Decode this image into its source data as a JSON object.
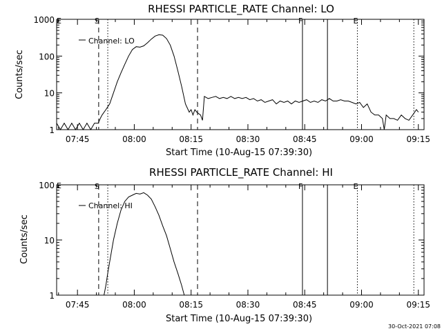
{
  "footer_text": "30-Oct-2021 07:08",
  "chart_data": [
    {
      "type": "line",
      "title": "RHESSI PARTICLE_RATE Channel: LO",
      "xlabel": "Start Time (10-Aug-15 07:39:30)",
      "ylabel": "Counts/sec",
      "x_unit": "minutes after 07:39:30",
      "xlim": [
        0,
        97
      ],
      "ylim": [
        1,
        1000
      ],
      "yscale": "log",
      "xticks": [
        {
          "x": 5.5,
          "label": "07:45"
        },
        {
          "x": 20.5,
          "label": "08:00"
        },
        {
          "x": 35.5,
          "label": "08:15"
        },
        {
          "x": 50.5,
          "label": "08:30"
        },
        {
          "x": 65.5,
          "label": "08:45"
        },
        {
          "x": 80.5,
          "label": "09:00"
        },
        {
          "x": 95.5,
          "label": "09:15"
        }
      ],
      "yticks": [
        {
          "y": 1,
          "label": "1"
        },
        {
          "y": 10,
          "label": "10"
        },
        {
          "y": 100,
          "label": "100"
        },
        {
          "y": 1000,
          "label": "1000"
        }
      ],
      "legend": {
        "label": "Channel: LO",
        "placement": "top-left"
      },
      "markers": [
        {
          "x": 11.1,
          "style": "dashed",
          "label": "S"
        },
        {
          "x": 13.5,
          "style": "dotted",
          "label": ""
        },
        {
          "x": 37.2,
          "style": "dashed",
          "label": ""
        },
        {
          "x": 64.9,
          "style": "solid",
          "label": "F"
        },
        {
          "x": 71.5,
          "style": "solid",
          "label": ""
        },
        {
          "x": 79.4,
          "style": "dotted",
          "label": "E"
        },
        {
          "x": 94.3,
          "style": "dotted",
          "label": ""
        }
      ],
      "edge_label": "E",
      "series": [
        {
          "name": "Channel: LO",
          "points": [
            [
              0,
              1.5
            ],
            [
              1,
              1
            ],
            [
              2,
              1.5
            ],
            [
              3,
              1
            ],
            [
              4,
              1.5
            ],
            [
              5,
              1
            ],
            [
              6,
              1.5
            ],
            [
              7,
              1
            ],
            [
              8,
              1.5
            ],
            [
              9,
              1
            ],
            [
              10,
              1.5
            ],
            [
              11,
              1.5
            ],
            [
              11.5,
              2
            ],
            [
              12,
              2.5
            ],
            [
              13,
              3.5
            ],
            [
              14,
              5
            ],
            [
              15,
              10
            ],
            [
              16,
              20
            ],
            [
              17,
              35
            ],
            [
              18,
              60
            ],
            [
              19,
              100
            ],
            [
              20,
              150
            ],
            [
              21,
              180
            ],
            [
              22,
              175
            ],
            [
              23,
              190
            ],
            [
              24,
              230
            ],
            [
              25,
              290
            ],
            [
              26,
              350
            ],
            [
              27,
              380
            ],
            [
              28,
              370
            ],
            [
              29,
              300
            ],
            [
              30,
              200
            ],
            [
              31,
              100
            ],
            [
              32,
              40
            ],
            [
              33,
              15
            ],
            [
              34,
              5
            ],
            [
              35,
              3
            ],
            [
              35.5,
              3.5
            ],
            [
              36,
              2.5
            ],
            [
              36.5,
              3.5
            ],
            [
              37,
              3
            ],
            [
              38,
              2.5
            ],
            [
              38.5,
              1.8
            ],
            [
              39,
              8
            ],
            [
              40,
              7
            ],
            [
              41,
              7.5
            ],
            [
              42,
              8
            ],
            [
              43,
              7
            ],
            [
              44,
              7.5
            ],
            [
              45,
              7
            ],
            [
              46,
              8
            ],
            [
              47,
              7
            ],
            [
              48,
              7.5
            ],
            [
              49,
              7
            ],
            [
              50,
              7.5
            ],
            [
              51,
              6.5
            ],
            [
              52,
              7
            ],
            [
              53,
              6
            ],
            [
              54,
              6.5
            ],
            [
              55,
              5.5
            ],
            [
              56,
              6
            ],
            [
              57,
              6.5
            ],
            [
              58,
              5
            ],
            [
              59,
              6
            ],
            [
              60,
              5.5
            ],
            [
              61,
              6
            ],
            [
              62,
              5
            ],
            [
              63,
              6
            ],
            [
              64,
              5.5
            ],
            [
              65,
              6
            ],
            [
              66,
              6.5
            ],
            [
              67,
              5.5
            ],
            [
              68,
              6
            ],
            [
              69,
              5.5
            ],
            [
              70,
              6.5
            ],
            [
              71,
              6
            ],
            [
              72,
              7
            ],
            [
              73,
              6
            ],
            [
              74,
              6
            ],
            [
              75,
              6.5
            ],
            [
              76,
              6
            ],
            [
              77,
              6
            ],
            [
              78,
              5.5
            ],
            [
              79,
              5
            ],
            [
              80,
              5.5
            ],
            [
              81,
              4
            ],
            [
              82,
              5
            ],
            [
              83,
              3
            ],
            [
              84,
              2.5
            ],
            [
              85,
              2.5
            ],
            [
              86,
              2
            ],
            [
              86.5,
              1
            ],
            [
              87,
              2.5
            ],
            [
              88,
              2
            ],
            [
              89,
              2
            ],
            [
              90,
              1.8
            ],
            [
              91,
              2.5
            ],
            [
              92,
              2
            ],
            [
              93,
              1.8
            ],
            [
              94,
              2.5
            ],
            [
              95,
              3.5
            ],
            [
              95.5,
              3
            ]
          ]
        }
      ]
    },
    {
      "type": "line",
      "title": "RHESSI PARTICLE_RATE Channel: HI",
      "xlabel": "Start Time (10-Aug-15 07:39:30)",
      "ylabel": "Counts/sec",
      "x_unit": "minutes after 07:39:30",
      "xlim": [
        0,
        97
      ],
      "ylim": [
        1,
        100
      ],
      "yscale": "log",
      "xticks": [
        {
          "x": 5.5,
          "label": "07:45"
        },
        {
          "x": 20.5,
          "label": "08:00"
        },
        {
          "x": 35.5,
          "label": "08:15"
        },
        {
          "x": 50.5,
          "label": "08:30"
        },
        {
          "x": 65.5,
          "label": "08:45"
        },
        {
          "x": 80.5,
          "label": "09:00"
        },
        {
          "x": 95.5,
          "label": "09:15"
        }
      ],
      "yticks": [
        {
          "y": 1,
          "label": "1"
        },
        {
          "y": 10,
          "label": "10"
        },
        {
          "y": 100,
          "label": "100"
        }
      ],
      "legend": {
        "label": "Channel: HI",
        "placement": "top-left"
      },
      "markers": [
        {
          "x": 11.1,
          "style": "dashed",
          "label": "S"
        },
        {
          "x": 13.5,
          "style": "dotted",
          "label": ""
        },
        {
          "x": 37.2,
          "style": "dashed",
          "label": ""
        },
        {
          "x": 64.9,
          "style": "solid",
          "label": "F"
        },
        {
          "x": 71.5,
          "style": "solid",
          "label": ""
        },
        {
          "x": 79.4,
          "style": "dotted",
          "label": "E"
        },
        {
          "x": 94.3,
          "style": "dotted",
          "label": ""
        }
      ],
      "edge_label": "E",
      "series": [
        {
          "name": "Channel: HI",
          "points": [
            [
              12.5,
              1
            ],
            [
              13,
              1.5
            ],
            [
              13.5,
              2.5
            ],
            [
              14,
              4
            ],
            [
              15,
              10
            ],
            [
              16,
              20
            ],
            [
              17,
              35
            ],
            [
              18,
              50
            ],
            [
              19,
              60
            ],
            [
              20,
              65
            ],
            [
              21,
              70
            ],
            [
              22,
              68
            ],
            [
              23,
              72
            ],
            [
              24,
              65
            ],
            [
              25,
              55
            ],
            [
              26,
              40
            ],
            [
              27,
              28
            ],
            [
              28,
              18
            ],
            [
              29,
              12
            ],
            [
              30,
              7
            ],
            [
              31,
              4
            ],
            [
              32,
              2.5
            ],
            [
              33,
              1.5
            ],
            [
              33.7,
              1
            ]
          ]
        }
      ]
    }
  ]
}
